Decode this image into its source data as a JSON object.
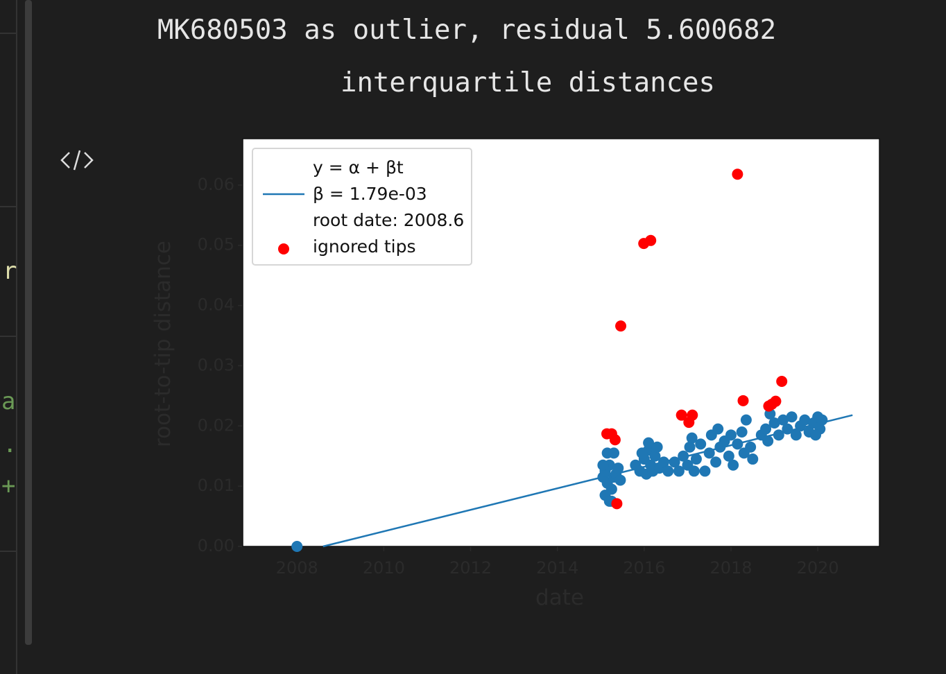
{
  "output_text": [
    "MK680503 as outlier, residual 5.600682",
    "interquartile distances"
  ],
  "editor_fragments": [
    "r",
    "a",
    ".",
    "+"
  ],
  "chart_data": {
    "type": "scatter",
    "xlabel": "date",
    "ylabel": "root-to-tip distance",
    "xlim": [
      2006.75,
      2021.42
    ],
    "ylim": [
      0,
      0.0677
    ],
    "xticks": [
      2008,
      2010,
      2012,
      2014,
      2016,
      2018,
      2020
    ],
    "yticks": [
      {
        "value": 0,
        "label": "0.00"
      },
      0.01,
      0.02,
      0.03,
      0.04,
      0.05,
      0.06
    ],
    "legend": "upper left",
    "series": [
      {
        "type": "line",
        "name": "y = α + βt\nβ = 1.79e-03\nroot date: 2008.6",
        "color": "#1f77b4",
        "x": [
          2008.6,
          2020.8
        ],
        "values": [
          0,
          0.0218
        ]
      },
      {
        "type": "scatter",
        "color": "#1f77b4",
        "x": [
          2008.0,
          2015.05,
          2015.1,
          2015.15,
          2015.2,
          2015.25,
          2015.1,
          2015.2,
          2015.3,
          2015.35,
          2015.15,
          2015.3,
          2015.4,
          2015.45,
          2015.05,
          2015.25,
          2015.8,
          2015.9,
          2016.0,
          2016.05,
          2016.1,
          2016.15,
          2016.2,
          2016.1,
          2016.25,
          2016.3,
          2016.35,
          2016.45,
          2016.55,
          2015.95,
          2016.7,
          2016.8,
          2016.9,
          2017.0,
          2017.05,
          2017.1,
          2017.2,
          2017.3,
          2017.4,
          2017.5,
          2017.55,
          2017.65,
          2017.75,
          2017.85,
          2017.95,
          2018.0,
          2018.05,
          2018.15,
          2018.25,
          2018.3,
          2018.35,
          2018.45,
          2018.5,
          2017.15,
          2017.7,
          2018.7,
          2018.8,
          2018.9,
          2019.0,
          2019.1,
          2019.2,
          2019.3,
          2019.4,
          2019.5,
          2019.6,
          2019.7,
          2019.8,
          2019.9,
          2020.0,
          2020.05,
          2020.1,
          2019.95,
          2018.85
        ],
        "values": [
          0.0,
          0.0115,
          0.0125,
          0.0105,
          0.0135,
          0.0095,
          0.0085,
          0.0075,
          0.0115,
          0.012,
          0.0155,
          0.0155,
          0.013,
          0.011,
          0.0135,
          0.0075,
          0.0135,
          0.0125,
          0.0145,
          0.012,
          0.016,
          0.0135,
          0.0125,
          0.0172,
          0.015,
          0.0165,
          0.013,
          0.014,
          0.0125,
          0.0155,
          0.014,
          0.0125,
          0.015,
          0.0135,
          0.0165,
          0.018,
          0.0145,
          0.017,
          0.0125,
          0.0155,
          0.0185,
          0.014,
          0.0165,
          0.0175,
          0.015,
          0.0185,
          0.0135,
          0.017,
          0.019,
          0.0155,
          0.021,
          0.0165,
          0.0145,
          0.0125,
          0.0195,
          0.0185,
          0.0195,
          0.022,
          0.0205,
          0.0185,
          0.021,
          0.0195,
          0.0215,
          0.0185,
          0.02,
          0.021,
          0.019,
          0.0205,
          0.0215,
          0.0195,
          0.021,
          0.0185,
          0.0175
        ]
      },
      {
        "type": "scatter",
        "name": "ignored tips",
        "color": "#ff0000",
        "x": [
          2018.15,
          2015.99,
          2016.15,
          2015.46,
          2015.14,
          2015.25,
          2015.33,
          2015.37,
          2016.86,
          2017.11,
          2017.03,
          2018.28,
          2019.17,
          2018.87,
          2019.03,
          2018.94
        ],
        "values": [
          0.0618,
          0.0503,
          0.0508,
          0.0366,
          0.0187,
          0.0187,
          0.0177,
          0.0071,
          0.0218,
          0.0218,
          0.0206,
          0.0242,
          0.0274,
          0.0233,
          0.0241,
          0.0236
        ]
      }
    ]
  }
}
